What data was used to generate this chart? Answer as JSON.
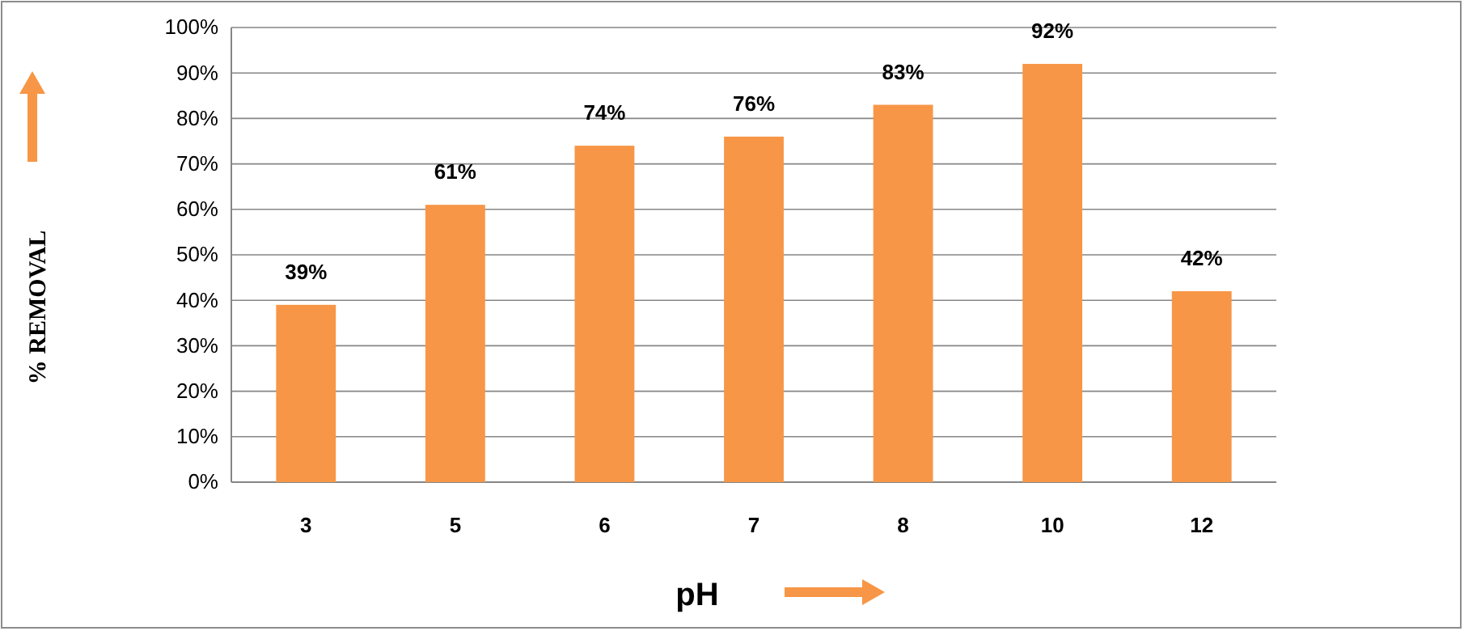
{
  "chart_data": {
    "type": "bar",
    "xlabel": "pH",
    "ylabel": "% REMOVAL",
    "categories": [
      "3",
      "5",
      "6",
      "7",
      "8",
      "10",
      "12"
    ],
    "values": [
      39,
      61,
      74,
      76,
      83,
      92,
      42
    ],
    "value_labels": [
      "39%",
      "61%",
      "74%",
      "76%",
      "83%",
      "92%",
      "42%"
    ],
    "color": "#f79646",
    "ylim": [
      0,
      100
    ],
    "yticks": [
      {
        "value": 0,
        "label": "0%"
      },
      {
        "value": 10,
        "label": "10%"
      },
      {
        "value": 20,
        "label": "20%"
      },
      {
        "value": 30,
        "label": "30%"
      },
      {
        "value": 40,
        "label": "40%"
      },
      {
        "value": 50,
        "label": "50%"
      },
      {
        "value": 60,
        "label": "60%"
      },
      {
        "value": 70,
        "label": "70%"
      },
      {
        "value": 80,
        "label": "80%"
      },
      {
        "value": 90,
        "label": "90%"
      },
      {
        "value": 100,
        "label": "100%"
      }
    ],
    "grid": "y"
  }
}
